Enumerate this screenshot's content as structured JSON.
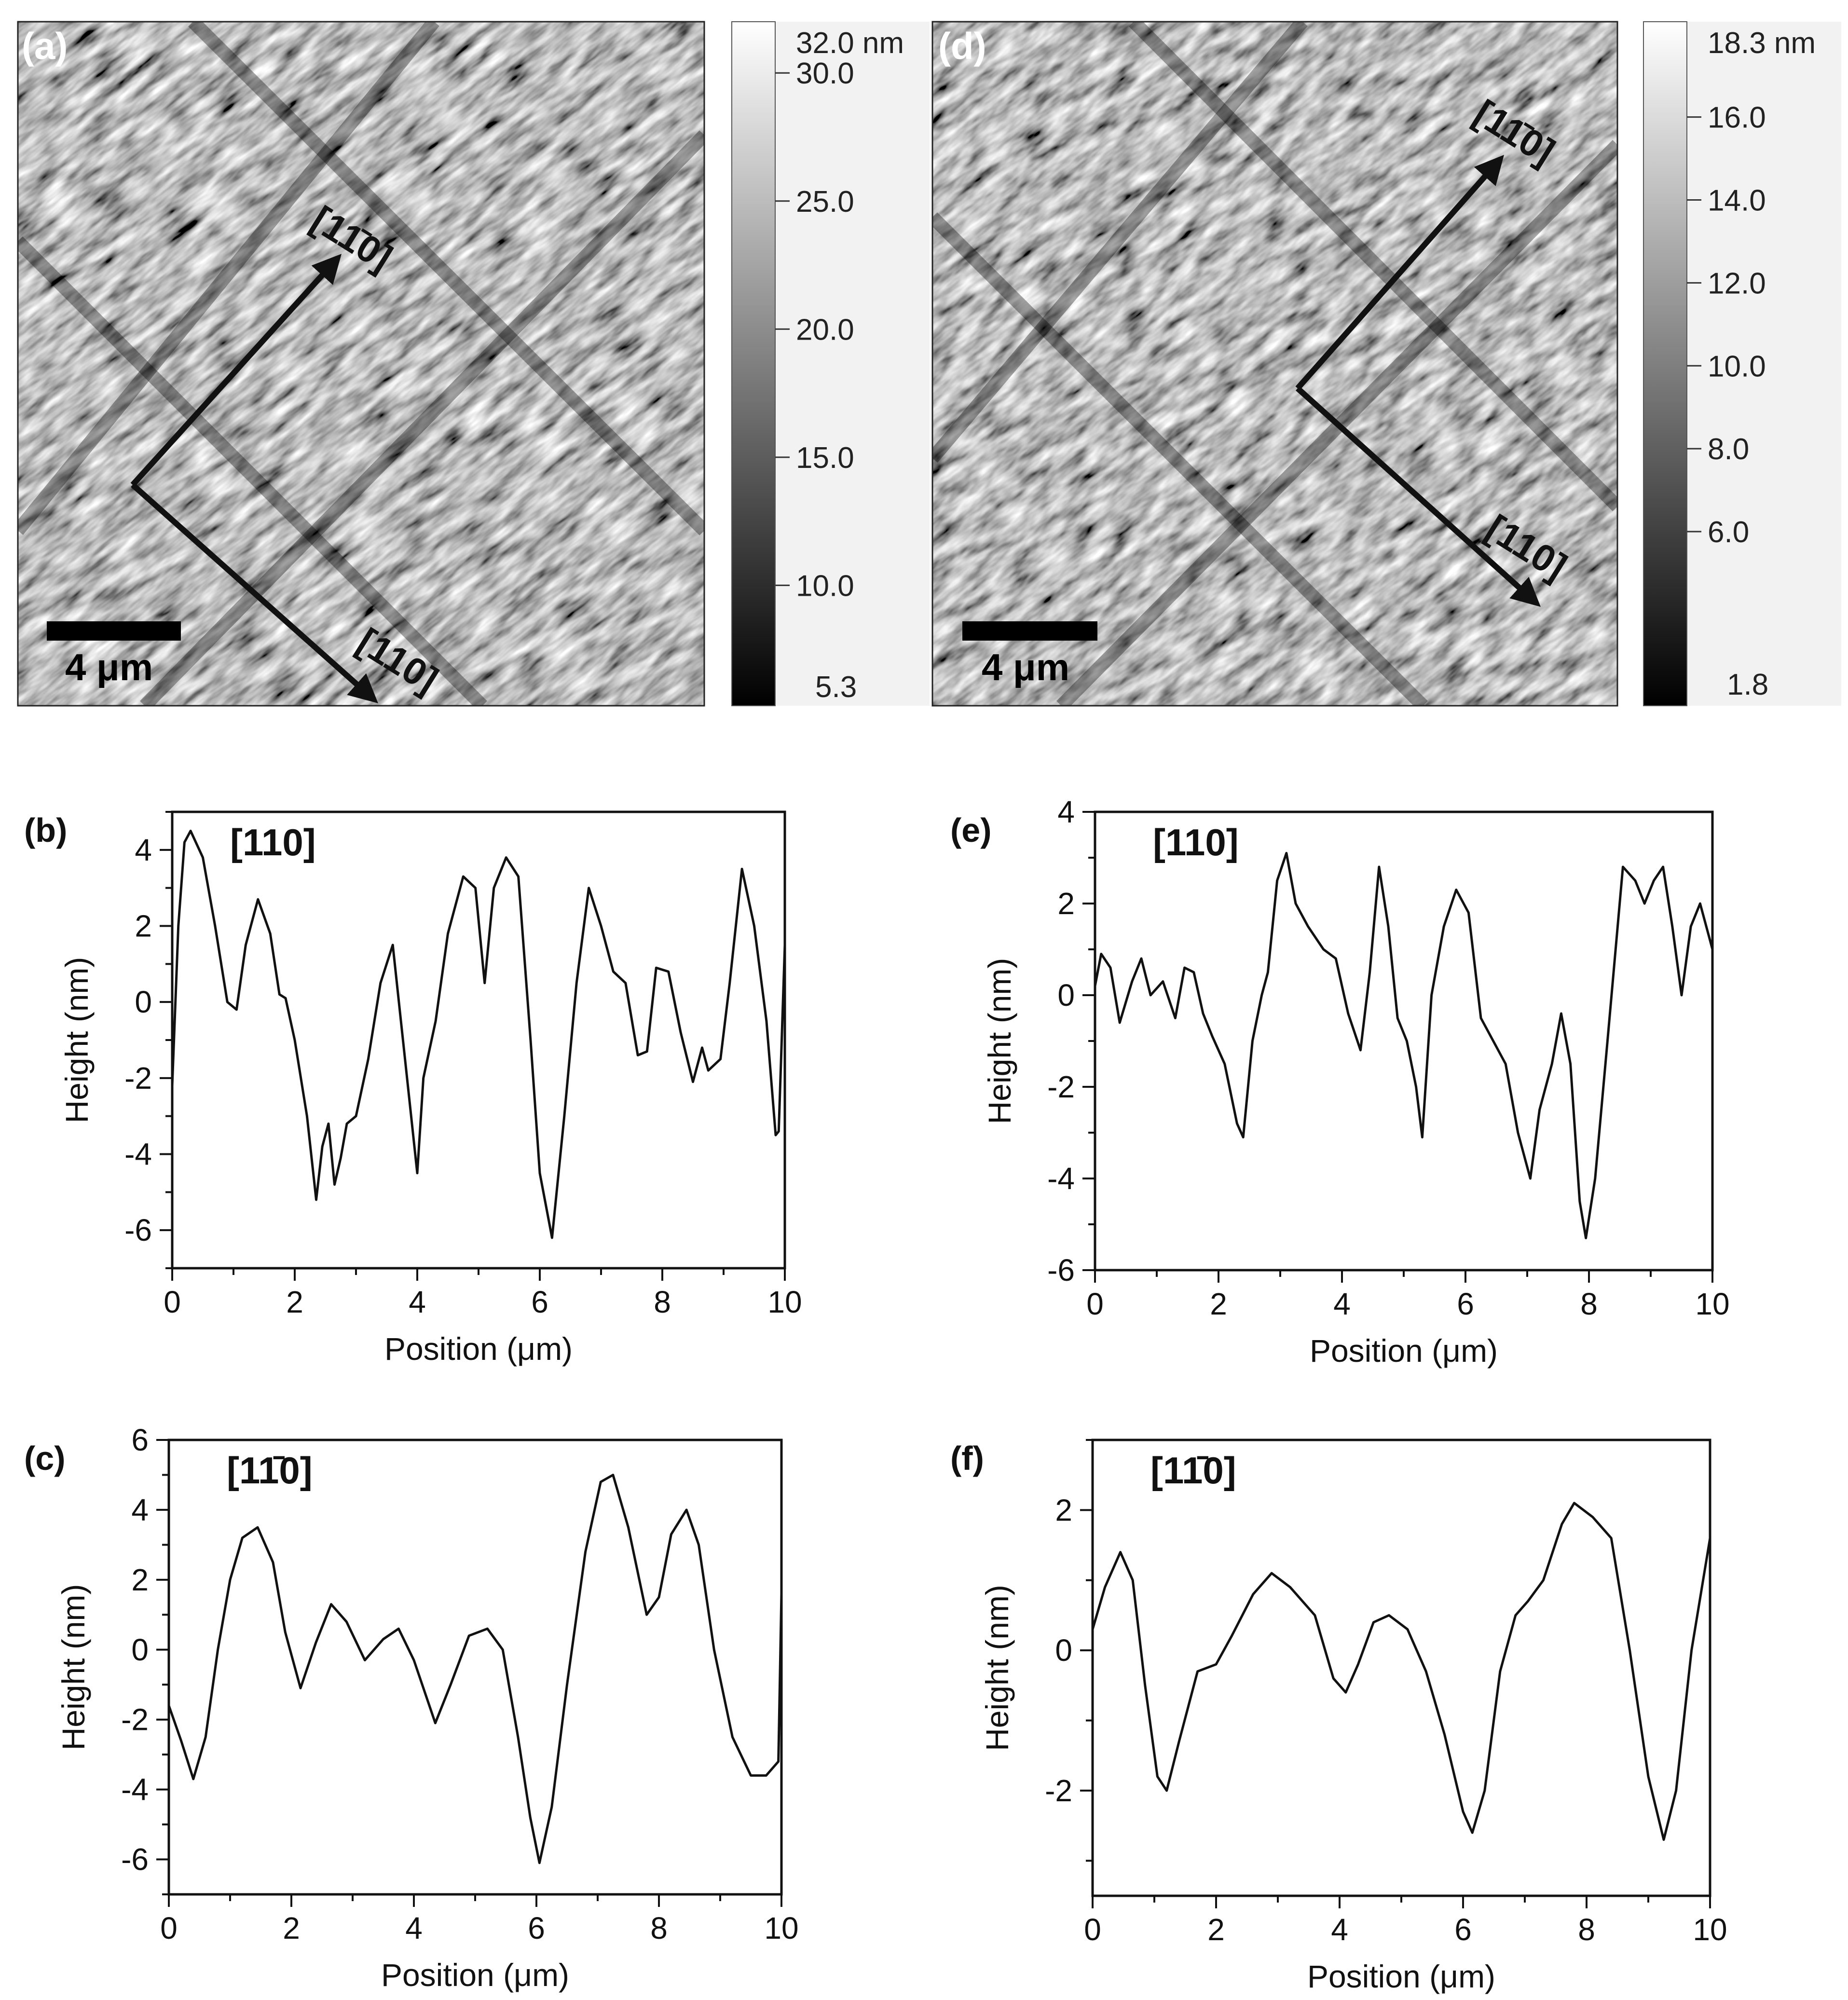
{
  "afm_images": [
    {
      "panel": "(a)",
      "scale_bar": "4 μm",
      "directions": [
        "[11̄0]",
        "[110]"
      ],
      "colorbar": {
        "unit_max_label": "32.0 nm",
        "min_label": "5.3",
        "min": 5.3,
        "max": 32.0,
        "tick_values": [
          30.0,
          25.0,
          20.0,
          15.0,
          10.0
        ],
        "tick_labels": [
          "30.0",
          "25.0",
          "20.0",
          "15.0",
          "10.0"
        ]
      }
    },
    {
      "panel": "(d)",
      "scale_bar": "4 μm",
      "directions": [
        "[11̄0]",
        "[110]"
      ],
      "colorbar": {
        "unit_max_label": "18.3 nm",
        "min_label": "1.8",
        "min": 1.8,
        "max": 18.3,
        "tick_values": [
          16.0,
          14.0,
          12.0,
          10.0,
          8.0,
          6.0
        ],
        "tick_labels": [
          "16.0",
          "14.0",
          "12.0",
          "10.0",
          "8.0",
          "6.0"
        ]
      }
    }
  ],
  "chart_data": [
    {
      "panel": "(b)",
      "type": "line",
      "inset_label": "[110]",
      "xlabel": "Position (μm)",
      "ylabel": "Height (nm)",
      "xlim": [
        0,
        10
      ],
      "ylim": [
        -7,
        5
      ],
      "xticks": [
        0,
        2,
        4,
        6,
        8,
        10
      ],
      "yticks": [
        -6,
        -4,
        -2,
        0,
        2,
        4
      ],
      "x": [
        0,
        0.1,
        0.2,
        0.3,
        0.5,
        0.7,
        0.9,
        1.05,
        1.2,
        1.4,
        1.6,
        1.75,
        1.85,
        2.0,
        2.2,
        2.35,
        2.45,
        2.55,
        2.65,
        2.75,
        2.85,
        3.0,
        3.2,
        3.4,
        3.6,
        3.8,
        4.0,
        4.1,
        4.3,
        4.5,
        4.75,
        4.95,
        5.1,
        5.25,
        5.45,
        5.65,
        5.85,
        6.0,
        6.2,
        6.4,
        6.6,
        6.8,
        7.0,
        7.2,
        7.4,
        7.6,
        7.75,
        7.9,
        8.1,
        8.3,
        8.5,
        8.65,
        8.75,
        8.95,
        9.1,
        9.3,
        9.5,
        9.7,
        9.85,
        9.9,
        10.0
      ],
      "values": [
        -2.2,
        2.0,
        4.2,
        4.5,
        3.8,
        2.0,
        0.0,
        -0.2,
        1.5,
        2.7,
        1.8,
        0.2,
        0.1,
        -1.0,
        -3.0,
        -5.2,
        -3.8,
        -3.2,
        -4.8,
        -4.1,
        -3.2,
        -3.0,
        -1.5,
        0.5,
        1.5,
        -1.5,
        -4.5,
        -2.0,
        -0.5,
        1.8,
        3.3,
        3.0,
        0.5,
        3.0,
        3.8,
        3.3,
        -1.0,
        -4.5,
        -6.2,
        -3.0,
        0.5,
        3.0,
        2.0,
        0.8,
        0.5,
        -1.4,
        -1.3,
        0.9,
        0.8,
        -0.8,
        -2.1,
        -1.2,
        -1.8,
        -1.5,
        0.5,
        3.5,
        2.0,
        -0.5,
        -3.5,
        -3.4,
        1.5
      ]
    },
    {
      "panel": "(c)",
      "type": "line",
      "inset_label": "[11̄0]",
      "xlabel": "Position (μm)",
      "ylabel": "Height (nm)",
      "xlim": [
        0,
        10
      ],
      "ylim": [
        -7,
        6
      ],
      "xticks": [
        0,
        2,
        4,
        6,
        8,
        10
      ],
      "yticks": [
        -6,
        -4,
        -2,
        0,
        2,
        4,
        6
      ],
      "x": [
        0,
        0.2,
        0.4,
        0.6,
        0.8,
        1.0,
        1.2,
        1.45,
        1.7,
        1.9,
        2.15,
        2.4,
        2.65,
        2.9,
        3.2,
        3.5,
        3.75,
        4.0,
        4.35,
        4.6,
        4.9,
        5.2,
        5.45,
        5.7,
        5.9,
        6.05,
        6.25,
        6.5,
        6.8,
        7.05,
        7.25,
        7.5,
        7.8,
        8.0,
        8.2,
        8.45,
        8.65,
        8.9,
        9.2,
        9.5,
        9.75,
        9.95,
        10.0
      ],
      "values": [
        -1.6,
        -2.6,
        -3.7,
        -2.5,
        0.0,
        2.0,
        3.2,
        3.5,
        2.5,
        0.5,
        -1.1,
        0.2,
        1.3,
        0.8,
        -0.3,
        0.3,
        0.6,
        -0.3,
        -2.1,
        -1.0,
        0.4,
        0.6,
        0.0,
        -2.5,
        -4.8,
        -6.1,
        -4.5,
        -1.0,
        2.8,
        4.8,
        5.0,
        3.5,
        1.0,
        1.5,
        3.3,
        4.0,
        3.0,
        0.0,
        -2.5,
        -3.6,
        -3.6,
        -3.2,
        1.6
      ]
    },
    {
      "panel": "(e)",
      "type": "line",
      "inset_label": "[110]",
      "xlabel": "Position (μm)",
      "ylabel": "Height (nm)",
      "xlim": [
        0,
        10
      ],
      "ylim": [
        -6,
        4
      ],
      "xticks": [
        0,
        2,
        4,
        6,
        8,
        10
      ],
      "yticks": [
        -6,
        -4,
        -2,
        0,
        2,
        4
      ],
      "x": [
        0,
        0.1,
        0.25,
        0.4,
        0.6,
        0.75,
        0.9,
        1.1,
        1.3,
        1.45,
        1.6,
        1.75,
        1.9,
        2.1,
        2.3,
        2.4,
        2.55,
        2.7,
        2.8,
        2.95,
        3.1,
        3.25,
        3.45,
        3.7,
        3.9,
        4.1,
        4.3,
        4.45,
        4.6,
        4.75,
        4.9,
        5.05,
        5.2,
        5.3,
        5.45,
        5.65,
        5.85,
        6.05,
        6.25,
        6.45,
        6.65,
        6.85,
        7.05,
        7.2,
        7.4,
        7.55,
        7.7,
        7.85,
        7.95,
        8.1,
        8.3,
        8.55,
        8.75,
        8.9,
        9.05,
        9.2,
        9.35,
        9.5,
        9.65,
        9.8,
        10.0
      ],
      "values": [
        0.2,
        0.9,
        0.6,
        -0.6,
        0.3,
        0.8,
        0.0,
        0.3,
        -0.5,
        0.6,
        0.5,
        -0.4,
        -0.9,
        -1.5,
        -2.8,
        -3.1,
        -1.0,
        0.0,
        0.5,
        2.5,
        3.1,
        2.0,
        1.5,
        1.0,
        0.8,
        -0.4,
        -1.2,
        0.5,
        2.8,
        1.5,
        -0.5,
        -1.0,
        -2.0,
        -3.1,
        0.0,
        1.5,
        2.3,
        1.8,
        -0.5,
        -1.0,
        -1.5,
        -3.0,
        -4.0,
        -2.5,
        -1.5,
        -0.4,
        -1.5,
        -4.5,
        -5.3,
        -4.0,
        -1.0,
        2.8,
        2.5,
        2.0,
        2.5,
        2.8,
        1.5,
        0.0,
        1.5,
        2.0,
        1.0
      ]
    },
    {
      "panel": "(f)",
      "type": "line",
      "inset_label": "[11̄0]",
      "xlabel": "Position (μm)",
      "ylabel": "Height (nm)",
      "xlim": [
        0,
        10
      ],
      "ylim": [
        -3.5,
        3
      ],
      "xticks": [
        0,
        2,
        4,
        6,
        8,
        10
      ],
      "yticks": [
        -2,
        0,
        2
      ],
      "x": [
        0,
        0.2,
        0.45,
        0.65,
        0.85,
        1.05,
        1.2,
        1.4,
        1.7,
        2.0,
        2.25,
        2.6,
        2.9,
        3.2,
        3.6,
        3.9,
        4.1,
        4.3,
        4.55,
        4.8,
        5.1,
        5.4,
        5.7,
        6.0,
        6.15,
        6.35,
        6.6,
        6.85,
        7.05,
        7.3,
        7.6,
        7.8,
        8.1,
        8.4,
        8.7,
        9.0,
        9.25,
        9.45,
        9.7,
        10.0
      ],
      "values": [
        0.3,
        0.9,
        1.4,
        1.0,
        -0.5,
        -1.8,
        -2.0,
        -1.3,
        -0.3,
        -0.2,
        0.2,
        0.8,
        1.1,
        0.9,
        0.5,
        -0.4,
        -0.6,
        -0.2,
        0.4,
        0.5,
        0.3,
        -0.3,
        -1.2,
        -2.3,
        -2.6,
        -2.0,
        -0.3,
        0.5,
        0.7,
        1.0,
        1.8,
        2.1,
        1.9,
        1.6,
        0.0,
        -1.8,
        -2.7,
        -2.0,
        0.0,
        1.6
      ]
    }
  ]
}
